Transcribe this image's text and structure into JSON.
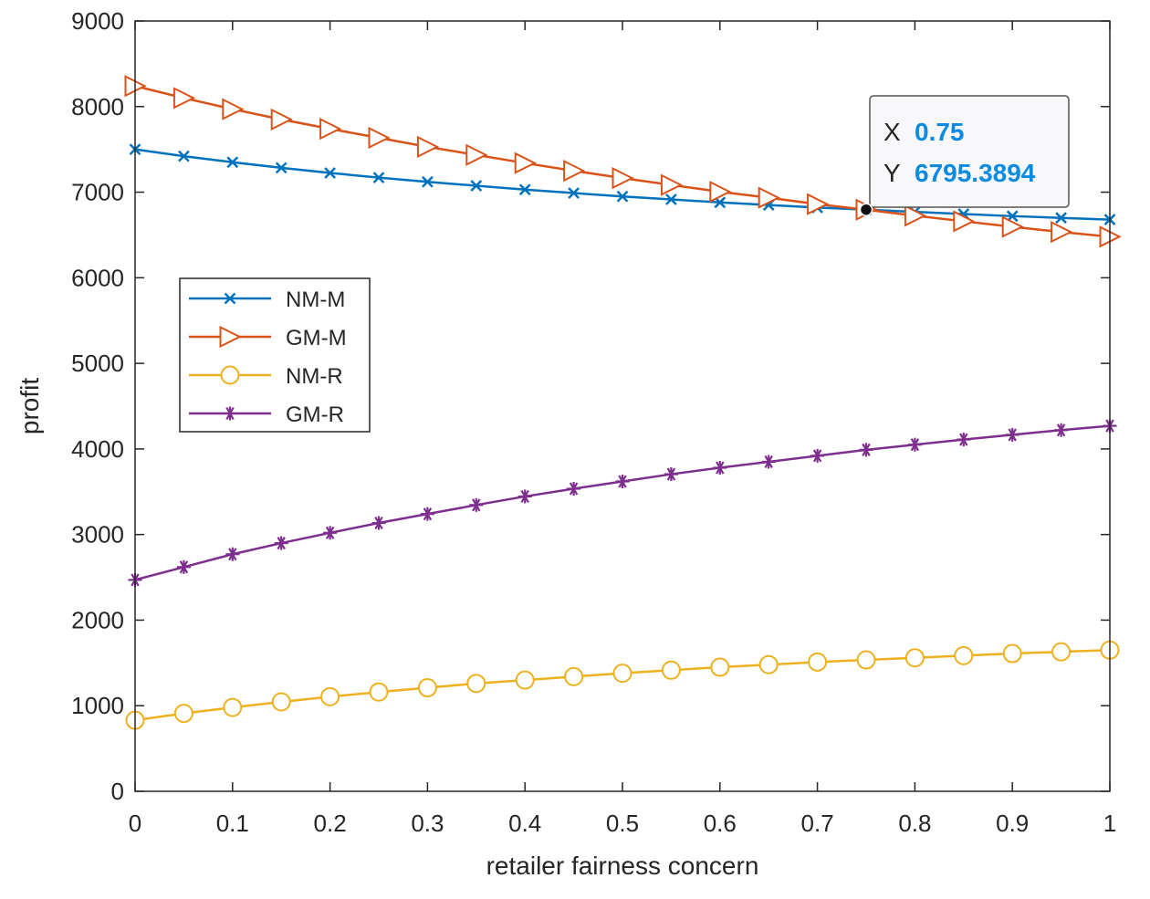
{
  "chart_data": {
    "type": "line",
    "title": "",
    "xlabel": "retailer fairness concern",
    "ylabel": "profit",
    "xlim": [
      0,
      1
    ],
    "ylim": [
      0,
      9000
    ],
    "x_ticks": [
      "0",
      "0.1",
      "0.2",
      "0.3",
      "0.4",
      "0.5",
      "0.6",
      "0.7",
      "0.8",
      "0.9",
      "1"
    ],
    "y_ticks": [
      "0",
      "1000",
      "2000",
      "3000",
      "4000",
      "5000",
      "6000",
      "7000",
      "8000",
      "9000"
    ],
    "x": [
      0,
      0.05,
      0.1,
      0.15,
      0.2,
      0.25,
      0.3,
      0.35,
      0.4,
      0.45,
      0.5,
      0.55,
      0.6,
      0.65,
      0.7,
      0.75,
      0.8,
      0.85,
      0.9,
      0.95,
      1
    ],
    "series": [
      {
        "name": "NM-M",
        "color": "#0072BD",
        "marker": "x",
        "values": [
          7500,
          7420,
          7350,
          7285,
          7225,
          7170,
          7120,
          7075,
          7030,
          6990,
          6950,
          6915,
          6880,
          6850,
          6820,
          6795,
          6770,
          6745,
          6720,
          6700,
          6680
        ]
      },
      {
        "name": "GM-M",
        "color": "#D95319",
        "marker": "triangle-right",
        "values": [
          8240,
          8100,
          7970,
          7850,
          7740,
          7635,
          7530,
          7435,
          7340,
          7250,
          7165,
          7085,
          7005,
          6935,
          6860,
          6795.3894,
          6725,
          6660,
          6595,
          6535,
          6480
        ]
      },
      {
        "name": "NM-R",
        "color": "#EDB120",
        "marker": "circle",
        "values": [
          830,
          910,
          980,
          1045,
          1105,
          1160,
          1210,
          1260,
          1300,
          1340,
          1380,
          1415,
          1450,
          1480,
          1510,
          1535,
          1560,
          1585,
          1610,
          1630,
          1650
        ]
      },
      {
        "name": "GM-R",
        "color": "#7E2F8E",
        "marker": "asterisk",
        "values": [
          2470,
          2620,
          2770,
          2900,
          3020,
          3135,
          3240,
          3345,
          3445,
          3535,
          3620,
          3705,
          3780,
          3850,
          3920,
          3990,
          4050,
          4110,
          4165,
          4220,
          4270
        ]
      }
    ],
    "legend_position": "middle-left",
    "datatip": {
      "x_key": "X",
      "y_key": "Y",
      "x_value": "0.75",
      "y_value": "6795.3894",
      "x": 0.75,
      "y": 6795.3894
    }
  }
}
